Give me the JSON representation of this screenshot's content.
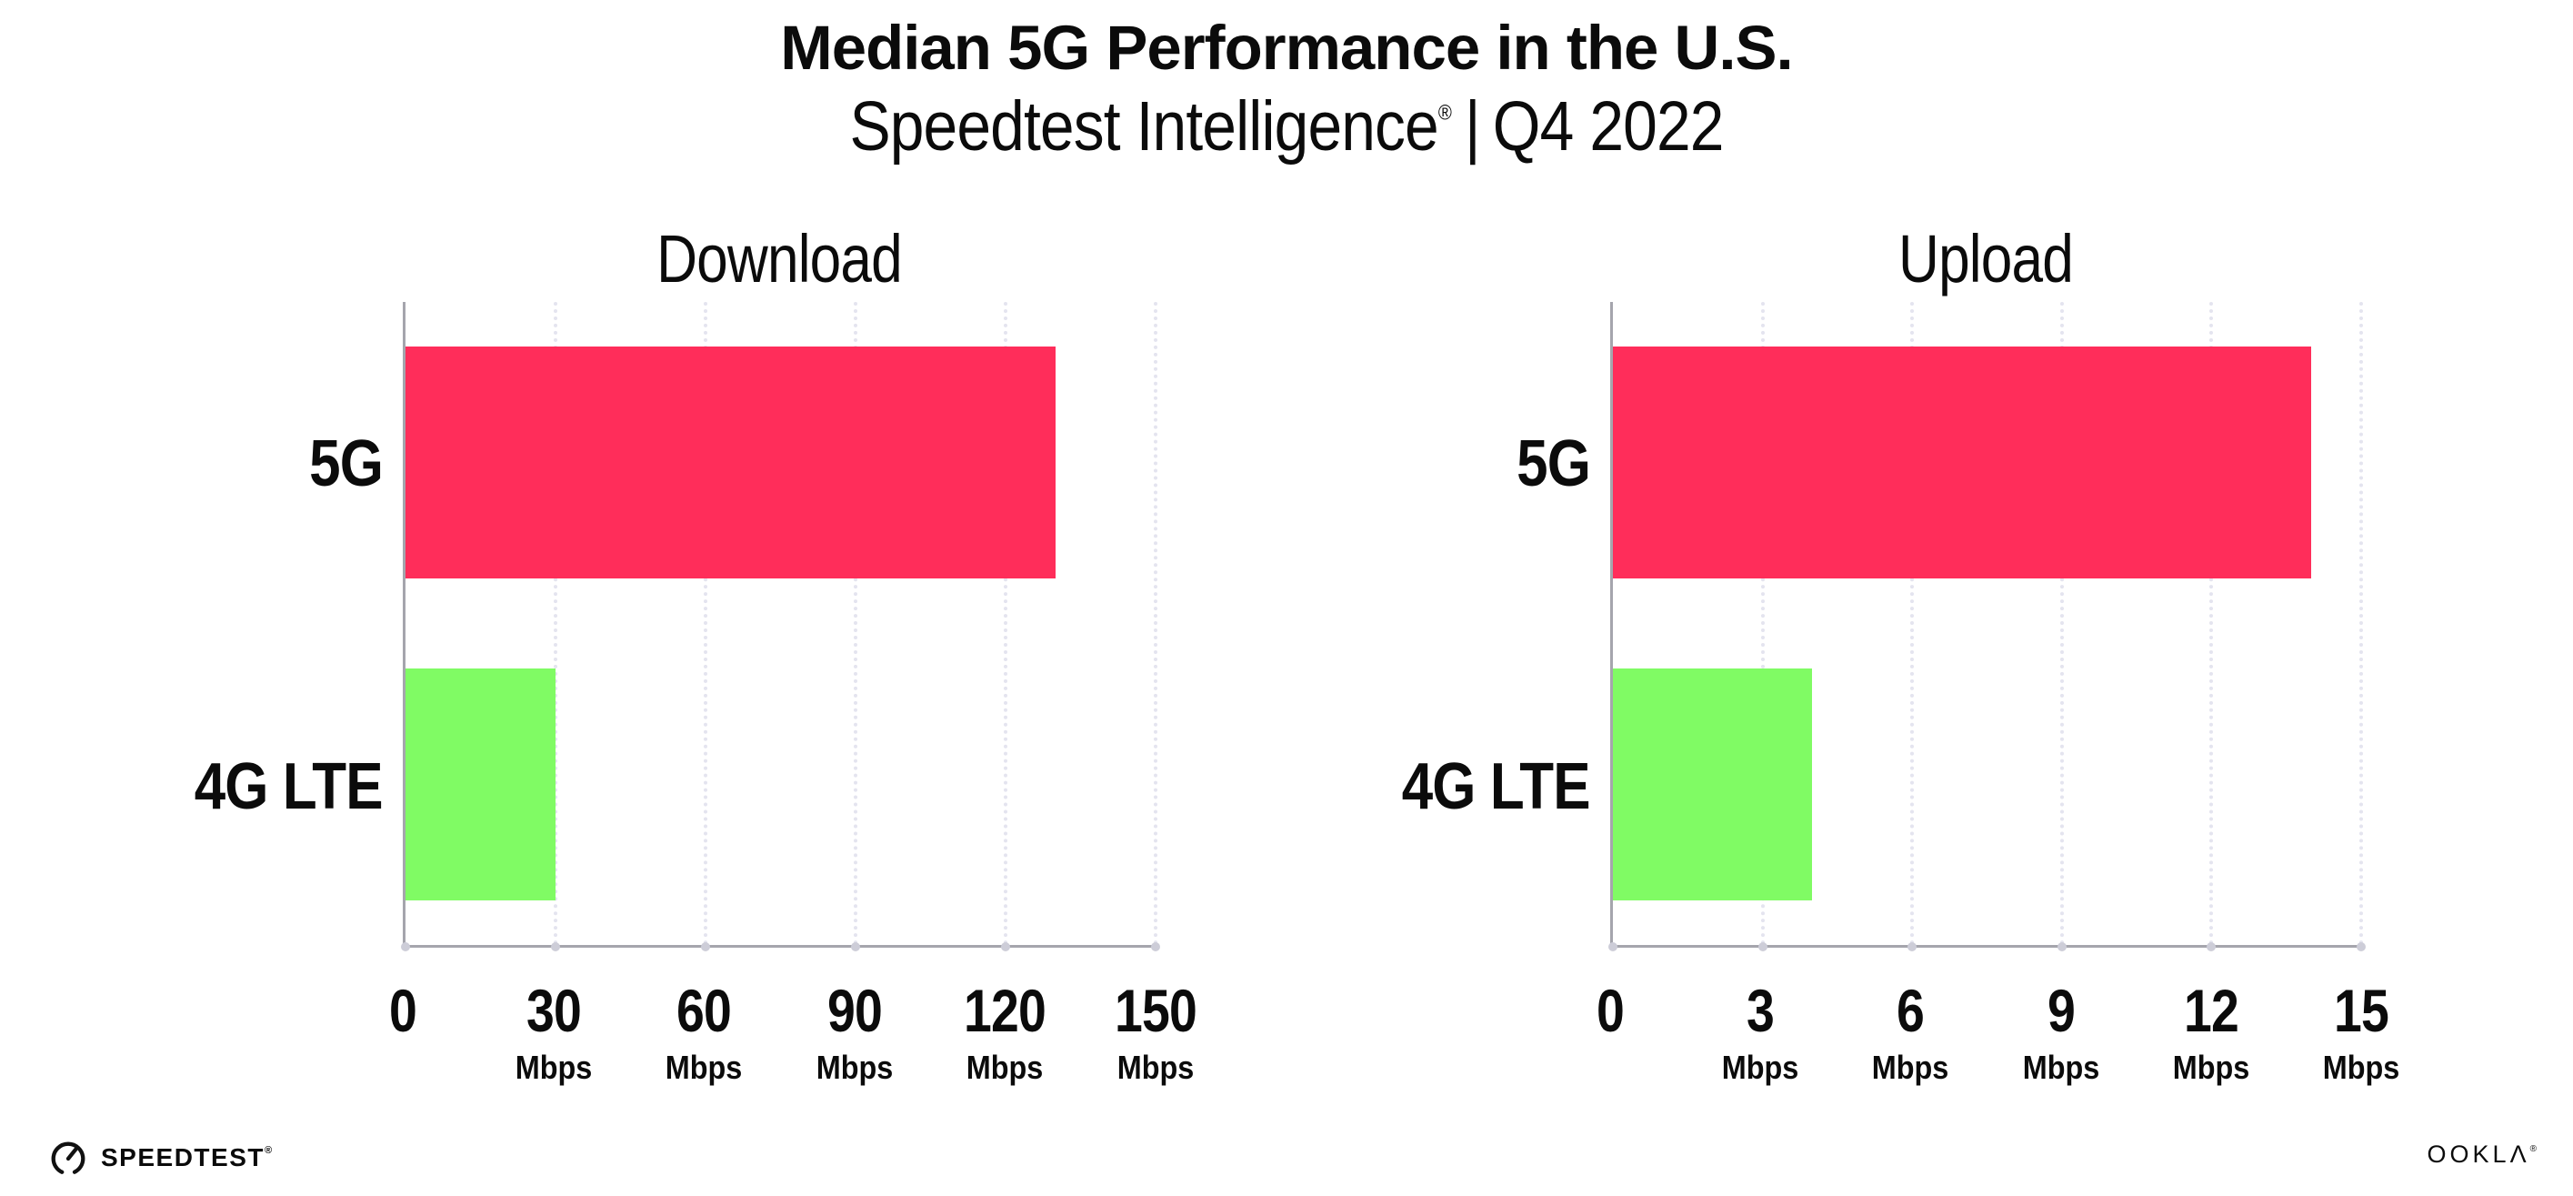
{
  "header": {
    "title": "Median 5G Performance in the U.S.",
    "subtitle": {
      "brand": "Speedtest Intelligence",
      "registered_mark": "®",
      "separator": "|",
      "period": "Q4 2022"
    }
  },
  "chart_data": [
    {
      "type": "bar",
      "orientation": "horizontal",
      "title": "Download",
      "categories": [
        "5G",
        "4G LTE"
      ],
      "values": [
        130,
        30
      ],
      "unit": "Mbps",
      "xlim": [
        0,
        150
      ],
      "xticks": [
        0,
        30,
        60,
        90,
        120,
        150
      ],
      "grid": "vertical-dotted",
      "legend": "none",
      "bar_colors": [
        "#FF2D5A",
        "#80FB64"
      ]
    },
    {
      "type": "bar",
      "orientation": "horizontal",
      "title": "Upload",
      "categories": [
        "5G",
        "4G LTE"
      ],
      "values": [
        14,
        4
      ],
      "unit": "Mbps",
      "xlim": [
        0,
        15
      ],
      "xticks": [
        0,
        3,
        6,
        9,
        12,
        15
      ],
      "grid": "vertical-dotted",
      "legend": "none",
      "bar_colors": [
        "#FF2D5A",
        "#80FB64"
      ]
    }
  ],
  "footer": {
    "speedtest_logo_text": "SPEEDTEST",
    "speedtest_mark": "®",
    "ookla_logo_text": "OOKLΛ",
    "ookla_mark": "®"
  },
  "colors": {
    "bar_5g": "#FF2D5A",
    "bar_4g": "#80FB64",
    "axis": "#A5A5AD",
    "grid": "#E4E4EF",
    "tick_dot": "#CDCDD8",
    "text": "#0B0B0B",
    "background": "#FFFFFF"
  }
}
